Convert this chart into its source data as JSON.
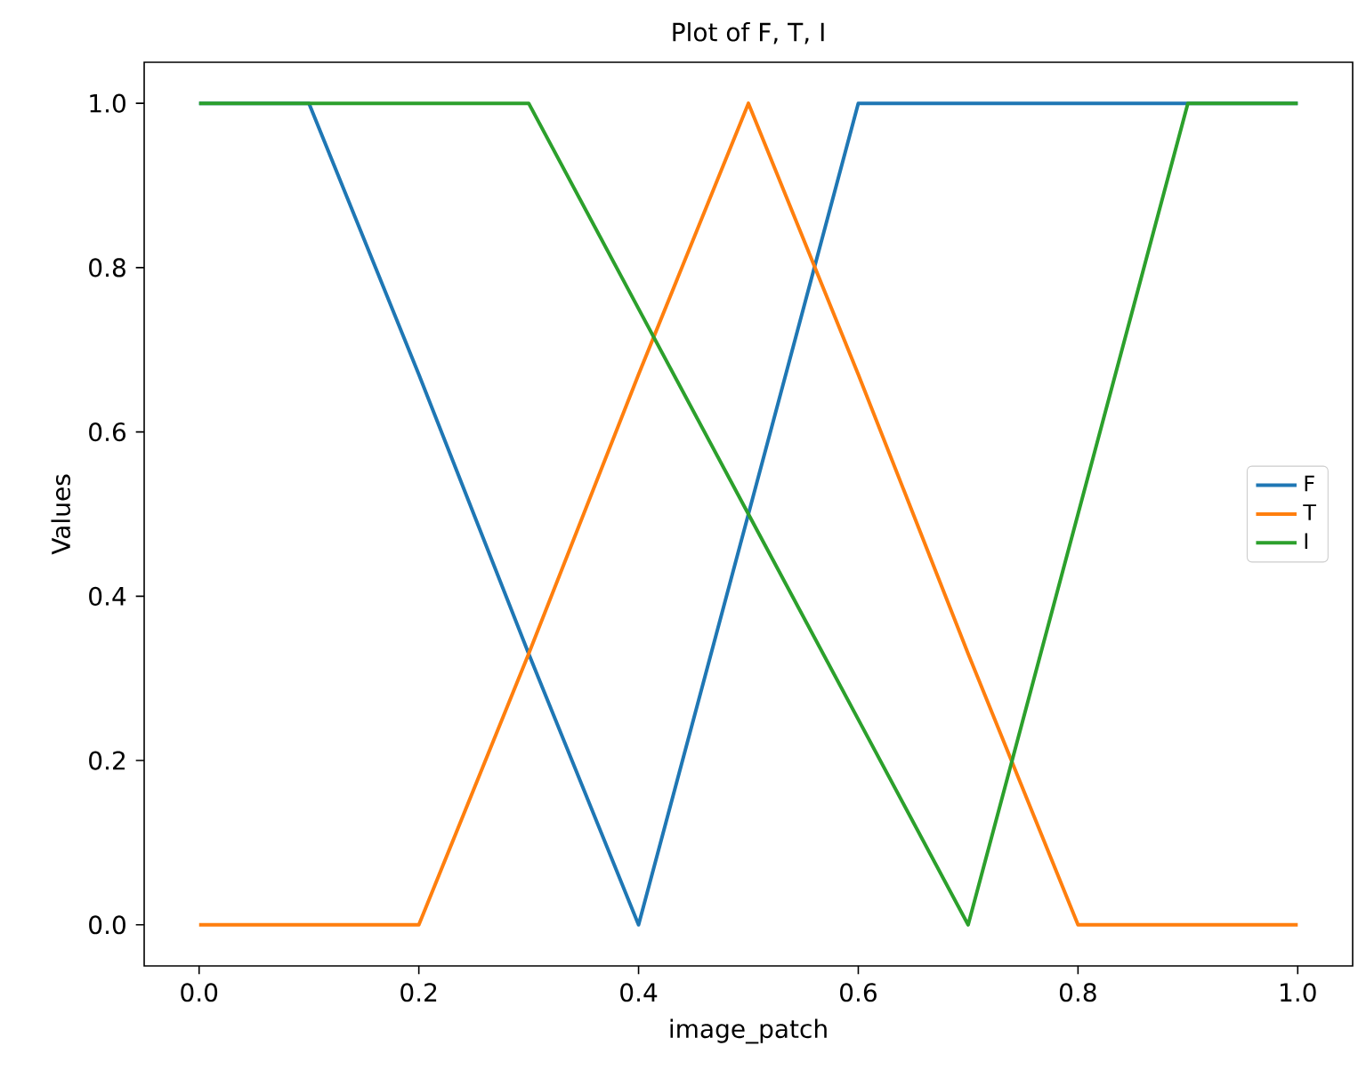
{
  "chart_data": {
    "type": "line",
    "title": "Plot of F, T, I",
    "xlabel": "image_patch",
    "ylabel": "Values",
    "x": [
      0,
      0.1,
      0.2,
      0.3,
      0.4,
      0.5,
      0.6,
      0.7,
      0.8,
      0.9,
      1.0
    ],
    "series": [
      {
        "name": "F",
        "color": "#1f77b4",
        "values": [
          1,
          1,
          0.67,
          0.33,
          0,
          0.5,
          1,
          1,
          1,
          1,
          1
        ]
      },
      {
        "name": "T",
        "color": "#ff7f0e",
        "values": [
          0,
          0,
          0,
          0.33,
          0.67,
          1,
          0.67,
          0.33,
          0,
          0,
          0
        ]
      },
      {
        "name": "I",
        "color": "#2ca02c",
        "values": [
          1,
          1,
          1,
          1,
          0.75,
          0.5,
          0.25,
          0,
          0.5,
          1,
          1
        ]
      }
    ],
    "xlim": [
      -0.05,
      1.05
    ],
    "ylim": [
      -0.05,
      1.05
    ],
    "xticks": [
      {
        "value": 0,
        "label": "0.0"
      },
      {
        "value": 0.2,
        "label": "0.2"
      },
      {
        "value": 0.4,
        "label": "0.4"
      },
      {
        "value": 0.6,
        "label": "0.6"
      },
      {
        "value": 0.8,
        "label": "0.8"
      },
      {
        "value": 1.0,
        "label": "1.0"
      }
    ],
    "yticks": [
      {
        "value": 0,
        "label": "0.0"
      },
      {
        "value": 0.2,
        "label": "0.2"
      },
      {
        "value": 0.4,
        "label": "0.4"
      },
      {
        "value": 0.6,
        "label": "0.6"
      },
      {
        "value": 0.8,
        "label": "0.8"
      },
      {
        "value": 1.0,
        "label": "1.0"
      }
    ],
    "legend": "right",
    "line_style": "solid"
  }
}
